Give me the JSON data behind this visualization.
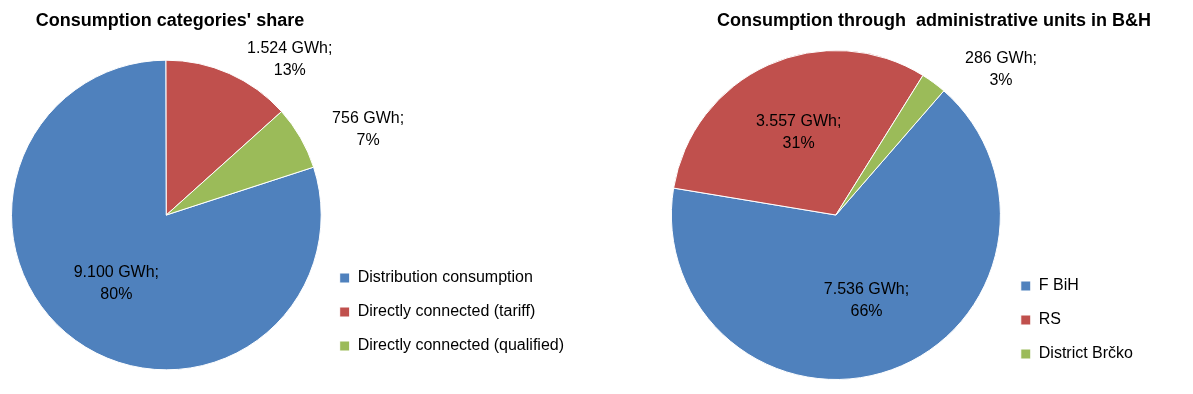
{
  "chart_data": [
    {
      "type": "pie",
      "title": "Consumption categories' share",
      "categories": [
        "Distribution consumption",
        "Directly connected (tariff)",
        "Directly connected (qualified)"
      ],
      "values": [
        9100,
        1524,
        756
      ],
      "colors": [
        "#4f81bd",
        "#c0504d",
        "#9bbb59"
      ],
      "value_labels": [
        "9.100 GWh; 80%",
        "1.524 GWh; 13%",
        "756 GWh; 7%"
      ],
      "legend": "right"
    },
    {
      "type": "pie",
      "title": "Consumption through  administrative units in B&H",
      "categories": [
        "F BiH",
        "RS",
        "District Brčko"
      ],
      "values": [
        7536,
        3557,
        286
      ],
      "colors": [
        "#4f81bd",
        "#c0504d",
        "#9bbb59"
      ],
      "value_labels": [
        "7.536 GWh; 66%",
        "3.557 GWh; 31%",
        "286 GWh; 3%"
      ],
      "legend": "right"
    }
  ]
}
